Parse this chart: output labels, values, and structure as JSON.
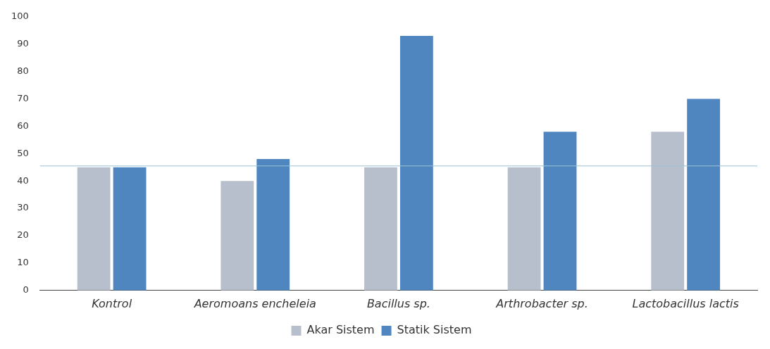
{
  "chart_data": {
    "type": "bar",
    "categories": [
      "Kontrol",
      "Aeromoans encheleia",
      "Bacillus sp.",
      "Arthrobacter sp.",
      "Lactobacillus lactis"
    ],
    "series": [
      {
        "name": "Akar Sistem",
        "color": "#b8bfcc",
        "values": [
          45,
          40,
          45,
          45,
          58
        ]
      },
      {
        "name": "Statik Sistem",
        "color": "#4f86c0",
        "values": [
          45,
          48,
          93,
          58,
          70
        ]
      }
    ],
    "ylim": [
      0,
      100
    ],
    "yticks": [
      0,
      10,
      20,
      30,
      40,
      50,
      60,
      70,
      80,
      90,
      100
    ],
    "grid": false,
    "legend": "bottom",
    "ref_lines": [
      {
        "axis": "y",
        "value": 45.5,
        "color": "#9dc3d6"
      }
    ]
  }
}
